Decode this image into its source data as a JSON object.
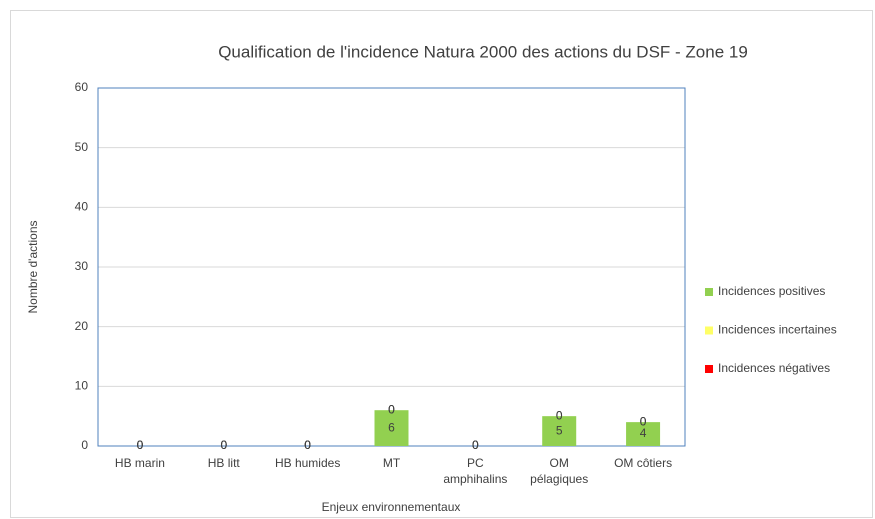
{
  "chart_data": {
    "type": "stacked_bar",
    "title": "Qualification de l'incidence Natura 2000 des actions du DSF - Zone 19",
    "x_label": "Enjeux environnementaux",
    "y_label": "Nombre d'actions",
    "categories": [
      "HB marin",
      "HB litt",
      "HB humides",
      "MT",
      "PC amphihalins",
      "OM pélagiques",
      "OM côtiers"
    ],
    "series": [
      {
        "name": "Incidences positives",
        "color": "#92d050",
        "values": [
          0,
          0,
          0,
          6,
          0,
          5,
          4
        ]
      },
      {
        "name": "Incidences incertaines",
        "color": "#ffff66",
        "values": [
          0,
          0,
          0,
          0,
          0,
          0,
          0
        ]
      },
      {
        "name": "Incidences négatives",
        "color": "#ff0000",
        "values": [
          0,
          0,
          0,
          0,
          0,
          0,
          0
        ]
      }
    ],
    "ylim": [
      0,
      60
    ],
    "yticks": [
      0,
      10,
      20,
      30,
      40,
      50,
      60
    ],
    "grid": true,
    "legend": "right"
  }
}
